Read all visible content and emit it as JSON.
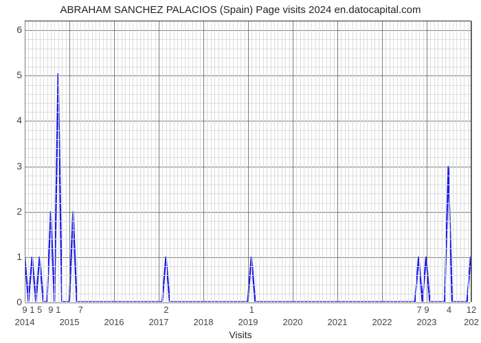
{
  "chart": {
    "type": "line",
    "title": "ABRAHAM SANCHEZ PALACIOS (Spain) Page visits 2024 en.datocapital.com",
    "title_fontsize": 15,
    "title_color": "#222222",
    "x_axis_title": "Visits",
    "x_axis_title_fontsize": 14,
    "background_color": "#ffffff",
    "line_color": "#1a1aee",
    "line_width": 2.3,
    "axis_color": "#444444",
    "grid_major_color": "#7a7a7a",
    "grid_minor_color": "#dcdcdc",
    "tick_label_color": "#444444",
    "tick_label_fontsize": 14,
    "year_label_fontsize": 13,
    "ylim": [
      0,
      6.2
    ],
    "y_ticks": [
      0,
      1,
      2,
      3,
      4,
      5,
      6
    ],
    "y_minor_step": 0.2,
    "x_years": [
      "2014",
      "2015",
      "2016",
      "2017",
      "2018",
      "2019",
      "2020",
      "2021",
      "2022",
      "2023",
      "202"
    ],
    "x_year_positions": [
      0,
      12,
      24,
      36,
      48,
      60,
      72,
      84,
      96,
      108,
      120
    ],
    "x_domain": [
      0,
      120
    ],
    "x_minor_step": 1,
    "value_labels": [
      {
        "x": 0,
        "label": "9"
      },
      {
        "x": 2,
        "label": "1"
      },
      {
        "x": 4,
        "label": "5"
      },
      {
        "x": 7,
        "label": "9"
      },
      {
        "x": 9,
        "label": "1"
      },
      {
        "x": 15,
        "label": "7"
      },
      {
        "x": 38,
        "label": "2"
      },
      {
        "x": 61,
        "label": "1"
      },
      {
        "x": 106,
        "label": "7"
      },
      {
        "x": 108,
        "label": "9"
      },
      {
        "x": 114,
        "label": "4"
      },
      {
        "x": 120,
        "label": "12"
      }
    ],
    "series": [
      {
        "x": 0,
        "y": 1.0
      },
      {
        "x": 1,
        "y": 0.0
      },
      {
        "x": 2,
        "y": 1.0
      },
      {
        "x": 3,
        "y": 0.0
      },
      {
        "x": 4,
        "y": 1.0
      },
      {
        "x": 5,
        "y": 0.0
      },
      {
        "x": 6,
        "y": 0.0
      },
      {
        "x": 7,
        "y": 2.0
      },
      {
        "x": 8,
        "y": 0.0
      },
      {
        "x": 9,
        "y": 5.05
      },
      {
        "x": 10,
        "y": 0.0
      },
      {
        "x": 11,
        "y": 0.0
      },
      {
        "x": 12,
        "y": 0.0
      },
      {
        "x": 13,
        "y": 2.0
      },
      {
        "x": 14,
        "y": 0.0
      },
      {
        "x": 15,
        "y": 0.0
      },
      {
        "x": 35,
        "y": 0.0
      },
      {
        "x": 36,
        "y": 0.0
      },
      {
        "x": 37,
        "y": 0.0
      },
      {
        "x": 38,
        "y": 1.0
      },
      {
        "x": 39,
        "y": 0.0
      },
      {
        "x": 59,
        "y": 0.0
      },
      {
        "x": 60,
        "y": 0.0
      },
      {
        "x": 61,
        "y": 1.0
      },
      {
        "x": 62,
        "y": 0.0
      },
      {
        "x": 104,
        "y": 0.0
      },
      {
        "x": 105,
        "y": 0.0
      },
      {
        "x": 106,
        "y": 1.0
      },
      {
        "x": 107,
        "y": 0.0
      },
      {
        "x": 108,
        "y": 1.0
      },
      {
        "x": 109,
        "y": 0.0
      },
      {
        "x": 110,
        "y": 0.0
      },
      {
        "x": 113,
        "y": 0.0
      },
      {
        "x": 114,
        "y": 3.0
      },
      {
        "x": 115,
        "y": 0.0
      },
      {
        "x": 119,
        "y": 0.0
      },
      {
        "x": 120,
        "y": 1.0
      }
    ]
  }
}
